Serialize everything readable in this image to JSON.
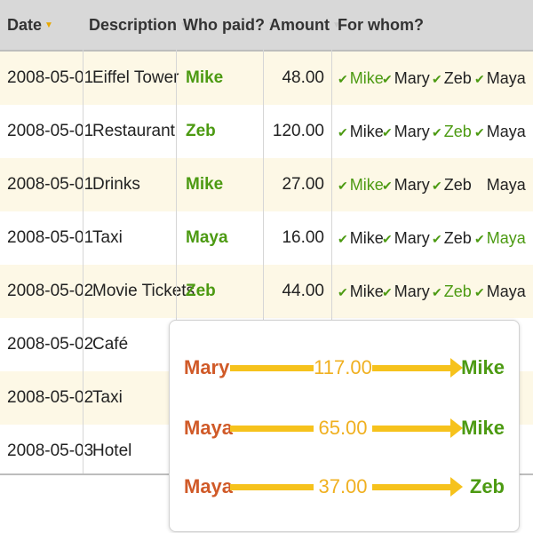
{
  "columns": {
    "date": "Date",
    "description": "Description",
    "who_paid": "Who paid?",
    "amount": "Amount",
    "for_whom": "For whom?"
  },
  "rows": [
    {
      "date": "2008-05-01",
      "description": "Eiffel Tower",
      "payer": "Mike",
      "amount": "48.00",
      "for_whom": [
        {
          "name": "Mike",
          "checked": true,
          "highlight": true
        },
        {
          "name": "Mary",
          "checked": true,
          "highlight": false
        },
        {
          "name": "Zeb",
          "checked": true,
          "highlight": false
        },
        {
          "name": "Maya",
          "checked": true,
          "highlight": false
        }
      ]
    },
    {
      "date": "2008-05-01",
      "description": "Restaurant",
      "payer": "Zeb",
      "amount": "120.00",
      "for_whom": [
        {
          "name": "Mike",
          "checked": true,
          "highlight": false
        },
        {
          "name": "Mary",
          "checked": true,
          "highlight": false
        },
        {
          "name": "Zeb",
          "checked": true,
          "highlight": true
        },
        {
          "name": "Maya",
          "checked": true,
          "highlight": false
        }
      ]
    },
    {
      "date": "2008-05-01",
      "description": "Drinks",
      "payer": "Mike",
      "amount": "27.00",
      "for_whom": [
        {
          "name": "Mike",
          "checked": true,
          "highlight": true
        },
        {
          "name": "Mary",
          "checked": true,
          "highlight": false
        },
        {
          "name": "Zeb",
          "checked": true,
          "highlight": false
        },
        {
          "name": "Maya",
          "checked": false,
          "highlight": false
        }
      ]
    },
    {
      "date": "2008-05-01",
      "description": "Taxi",
      "payer": "Maya",
      "amount": "16.00",
      "for_whom": [
        {
          "name": "Mike",
          "checked": true,
          "highlight": false
        },
        {
          "name": "Mary",
          "checked": true,
          "highlight": false
        },
        {
          "name": "Zeb",
          "checked": true,
          "highlight": false
        },
        {
          "name": "Maya",
          "checked": true,
          "highlight": true
        }
      ]
    },
    {
      "date": "2008-05-02",
      "description": "Movie Tickets",
      "payer": "Zeb",
      "amount": "44.00",
      "for_whom": [
        {
          "name": "Mike",
          "checked": true,
          "highlight": false
        },
        {
          "name": "Mary",
          "checked": true,
          "highlight": false
        },
        {
          "name": "Zeb",
          "checked": true,
          "highlight": true
        },
        {
          "name": "Maya",
          "checked": true,
          "highlight": false
        }
      ]
    },
    {
      "date": "2008-05-02",
      "description": "Café",
      "payer": "",
      "amount": "",
      "for_whom": []
    },
    {
      "date": "2008-05-02",
      "description": "Taxi",
      "payer": "",
      "amount": "",
      "for_whom": []
    },
    {
      "date": "2008-05-03",
      "description": "Hotel",
      "payer": "",
      "amount": "",
      "for_whom": []
    }
  ],
  "settlements": [
    {
      "from": "Mary",
      "amount": "117.00",
      "to": "Mike"
    },
    {
      "from": "Maya",
      "amount": "65.00",
      "to": "Mike"
    },
    {
      "from": "Maya",
      "amount": "37.00",
      "to": "Zeb"
    }
  ],
  "colors": {
    "header_bg": "#d8d8d8",
    "row_alt_bg": "#fdf8e6",
    "payer_green": "#4c9a12",
    "debtor_orange": "#d05a28",
    "arrow_yellow": "#f6c21c",
    "amount_yellow": "#f0b020"
  },
  "icons": {
    "check": "check-icon",
    "sort": "sort-arrow-icon"
  }
}
